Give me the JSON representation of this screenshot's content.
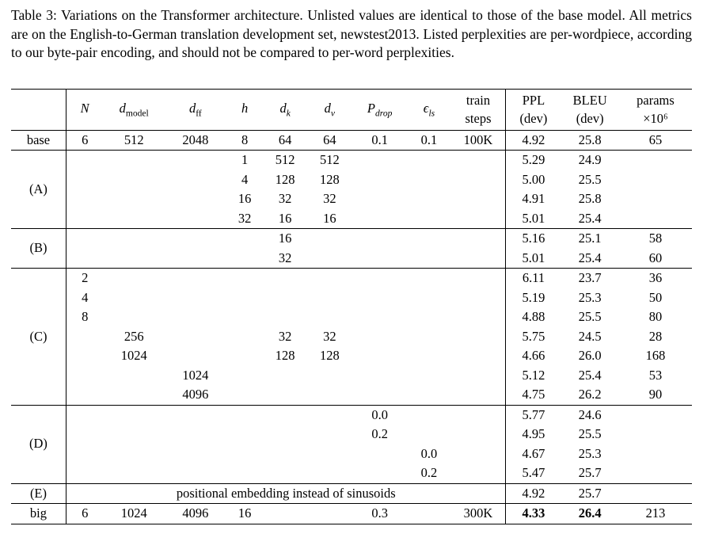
{
  "caption": {
    "text": "Table 3: Variations on the Transformer architecture. Unlisted values are identical to those of the base model. All metrics are on the English-to-German translation development set, newstest2013. Listed perplexities are per-wordpiece, according to our byte-pair encoding, and should not be compared to per-word perplexities."
  },
  "table": {
    "headers": [
      {
        "id": "row-label",
        "base": ""
      },
      {
        "id": "N",
        "base": "N",
        "baseItalic": true
      },
      {
        "id": "d-model",
        "base": "d",
        "baseItalic": true,
        "sub": "model",
        "subItalic": false
      },
      {
        "id": "d-ff",
        "base": "d",
        "baseItalic": true,
        "sub": "ff",
        "subItalic": false
      },
      {
        "id": "h",
        "base": "h",
        "baseItalic": true
      },
      {
        "id": "d-k",
        "base": "d",
        "baseItalic": true,
        "sub": "k",
        "subItalic": true
      },
      {
        "id": "d-v",
        "base": "d",
        "baseItalic": true,
        "sub": "v",
        "subItalic": true
      },
      {
        "id": "P-drop",
        "base": "P",
        "baseItalic": true,
        "sub": "drop",
        "subItalic": true
      },
      {
        "id": "eps-ls",
        "base": "ϵ",
        "baseItalic": true,
        "sub": "ls",
        "subItalic": true
      },
      {
        "id": "train-steps",
        "lines": [
          "train",
          "steps"
        ]
      },
      {
        "id": "ppl-dev",
        "lines": [
          "PPL",
          "(dev)"
        ]
      },
      {
        "id": "bleu-dev",
        "lines": [
          "BLEU",
          "(dev)"
        ]
      },
      {
        "id": "params",
        "lines": [
          "params",
          "×10⁶"
        ]
      }
    ],
    "groups": [
      {
        "label": "base",
        "rows": [
          {
            "cells": [
              "6",
              "512",
              "2048",
              "8",
              "64",
              "64",
              "0.1",
              "0.1",
              "100K",
              "4.92",
              "25.8",
              "65"
            ]
          }
        ]
      },
      {
        "label": "(A)",
        "rows": [
          {
            "cells": [
              "",
              "",
              "",
              "1",
              "512",
              "512",
              "",
              "",
              "",
              "5.29",
              "24.9",
              ""
            ]
          },
          {
            "cells": [
              "",
              "",
              "",
              "4",
              "128",
              "128",
              "",
              "",
              "",
              "5.00",
              "25.5",
              ""
            ]
          },
          {
            "cells": [
              "",
              "",
              "",
              "16",
              "32",
              "32",
              "",
              "",
              "",
              "4.91",
              "25.8",
              ""
            ]
          },
          {
            "cells": [
              "",
              "",
              "",
              "32",
              "16",
              "16",
              "",
              "",
              "",
              "5.01",
              "25.4",
              ""
            ]
          }
        ]
      },
      {
        "label": "(B)",
        "rows": [
          {
            "cells": [
              "",
              "",
              "",
              "",
              "16",
              "",
              "",
              "",
              "",
              "5.16",
              "25.1",
              "58"
            ]
          },
          {
            "cells": [
              "",
              "",
              "",
              "",
              "32",
              "",
              "",
              "",
              "",
              "5.01",
              "25.4",
              "60"
            ]
          }
        ]
      },
      {
        "label": "(C)",
        "rows": [
          {
            "cells": [
              "2",
              "",
              "",
              "",
              "",
              "",
              "",
              "",
              "",
              "6.11",
              "23.7",
              "36"
            ]
          },
          {
            "cells": [
              "4",
              "",
              "",
              "",
              "",
              "",
              "",
              "",
              "",
              "5.19",
              "25.3",
              "50"
            ]
          },
          {
            "cells": [
              "8",
              "",
              "",
              "",
              "",
              "",
              "",
              "",
              "",
              "4.88",
              "25.5",
              "80"
            ]
          },
          {
            "cells": [
              "",
              "256",
              "",
              "",
              "32",
              "32",
              "",
              "",
              "",
              "5.75",
              "24.5",
              "28"
            ]
          },
          {
            "cells": [
              "",
              "1024",
              "",
              "",
              "128",
              "128",
              "",
              "",
              "",
              "4.66",
              "26.0",
              "168"
            ]
          },
          {
            "cells": [
              "",
              "",
              "1024",
              "",
              "",
              "",
              "",
              "",
              "",
              "5.12",
              "25.4",
              "53"
            ]
          },
          {
            "cells": [
              "",
              "",
              "4096",
              "",
              "",
              "",
              "",
              "",
              "",
              "4.75",
              "26.2",
              "90"
            ]
          }
        ]
      },
      {
        "label": "(D)",
        "rows": [
          {
            "cells": [
              "",
              "",
              "",
              "",
              "",
              "",
              "0.0",
              "",
              "",
              "5.77",
              "24.6",
              ""
            ]
          },
          {
            "cells": [
              "",
              "",
              "",
              "",
              "",
              "",
              "0.2",
              "",
              "",
              "4.95",
              "25.5",
              ""
            ]
          },
          {
            "cells": [
              "",
              "",
              "",
              "",
              "",
              "",
              "",
              "0.0",
              "",
              "4.67",
              "25.3",
              ""
            ]
          },
          {
            "cells": [
              "",
              "",
              "",
              "",
              "",
              "",
              "",
              "0.2",
              "",
              "5.47",
              "25.7",
              ""
            ]
          }
        ]
      },
      {
        "label": "(E)",
        "rows": [
          {
            "span_text": "positional embedding instead of sinusoids",
            "tail": [
              "4.92",
              "25.7",
              ""
            ]
          }
        ]
      },
      {
        "label": "big",
        "rows": [
          {
            "cells": [
              "6",
              "1024",
              "4096",
              "16",
              "",
              "",
              "0.3",
              "",
              "300K",
              "4.33",
              "26.4",
              "213"
            ],
            "bold": [
              9,
              10
            ]
          }
        ]
      }
    ]
  }
}
